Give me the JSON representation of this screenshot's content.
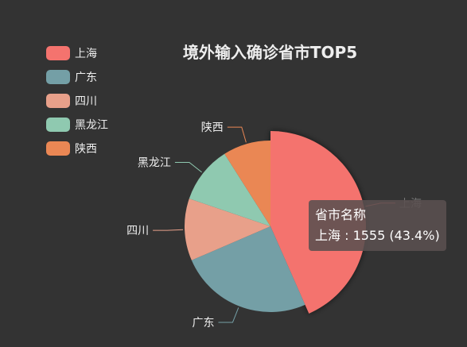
{
  "chart_data": {
    "type": "pie",
    "title": "境外输入确诊省市TOP5",
    "categories": [
      "上海",
      "广东",
      "四川",
      "黑龙江",
      "陕西"
    ],
    "values": [
      1555,
      900,
      420,
      386,
      322
    ],
    "colors": [
      "#f4736e",
      "#749fa6",
      "#e8a08a",
      "#8fc9b0",
      "#ea8754"
    ],
    "legend_position": "top-left",
    "tooltip": {
      "title": "省市名称",
      "line": "上海 : 1555 (43.4%)"
    }
  }
}
